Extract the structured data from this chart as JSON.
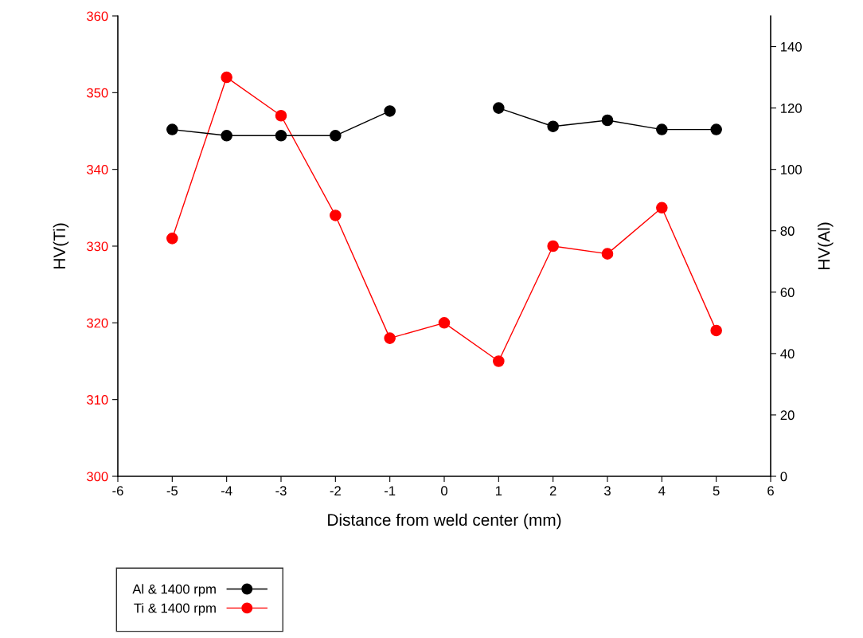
{
  "chart_data": {
    "type": "line",
    "xlabel": "Distance from weld center (mm)",
    "ylabel": "HV(Ti)",
    "y2label": "HV(Al)",
    "x": [
      -5,
      -4,
      -3,
      -2,
      -1,
      0,
      1,
      2,
      3,
      4,
      5
    ],
    "series": [
      {
        "name": "Al & 1400 rpm",
        "color": "#000000",
        "axis": "y2",
        "values": [
          113,
          111,
          111,
          111,
          119,
          null,
          120,
          114,
          116,
          113,
          113
        ]
      },
      {
        "name": "Ti & 1400 rpm",
        "color": "#ff0000",
        "axis": "y",
        "values": [
          331,
          352,
          347,
          334,
          318,
          320,
          315,
          330,
          329,
          335,
          319
        ]
      }
    ],
    "xlim": [
      -6,
      6
    ],
    "xticks": [
      -6,
      -5,
      -4,
      -3,
      -2,
      -1,
      0,
      1,
      2,
      3,
      4,
      5,
      6
    ],
    "ylim": [
      300,
      360
    ],
    "yticks": [
      300,
      310,
      320,
      330,
      340,
      350,
      360
    ],
    "y2lim": [
      0,
      150
    ],
    "y2ticks": [
      0,
      20,
      40,
      60,
      80,
      100,
      120,
      140
    ],
    "marker": "circle",
    "line_style": "solid",
    "grid": false,
    "legend": "bottom left"
  }
}
